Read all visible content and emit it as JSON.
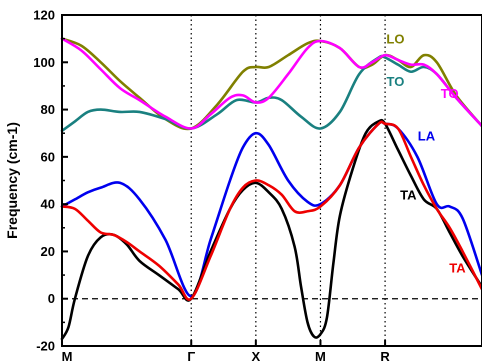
{
  "chart_data": {
    "type": "line",
    "title": "",
    "xlabel": "",
    "ylabel": "Frequency (cm-1)",
    "ylim": [
      -20,
      120
    ],
    "yticks": [
      -20,
      0,
      20,
      40,
      60,
      80,
      100,
      120
    ],
    "high_symmetry_points": [
      {
        "label": "M",
        "x": 0
      },
      {
        "label": "Γ",
        "x": 1
      },
      {
        "label": "X",
        "x": 1.5
      },
      {
        "label": "M",
        "x": 2
      },
      {
        "label": "R",
        "x": 2.5
      }
    ],
    "xlim": [
      0,
      3.25
    ],
    "zero_line": 0,
    "series": [
      {
        "name": "LO",
        "color": "#808000",
        "x": [
          0,
          0.15,
          0.3,
          0.45,
          0.6,
          0.8,
          1.0,
          1.2,
          1.4,
          1.5,
          1.6,
          1.75,
          1.9,
          2.0,
          2.15,
          2.3,
          2.4,
          2.5,
          2.6,
          2.7,
          2.8,
          2.9,
          3.05,
          3.25
        ],
        "y": [
          110,
          107,
          100,
          92,
          85,
          76,
          72,
          82,
          96,
          98,
          98,
          103,
          108,
          109,
          106,
          98,
          99,
          103,
          101,
          98,
          103,
          100,
          86,
          73
        ]
      },
      {
        "name": "TO",
        "color": "#1a8080",
        "x": [
          0,
          0.1,
          0.2,
          0.3,
          0.45,
          0.6,
          0.8,
          1.0,
          1.2,
          1.35,
          1.5,
          1.6,
          1.7,
          1.85,
          2.0,
          2.15,
          2.3,
          2.45,
          2.5,
          2.6,
          2.7,
          2.8,
          2.9,
          3.05,
          3.25
        ],
        "y": [
          71,
          75,
          79,
          80,
          79,
          79,
          76,
          72,
          78,
          84,
          83,
          85,
          84,
          77,
          72,
          79,
          95,
          102,
          102,
          99,
          96,
          98,
          95,
          85,
          73
        ]
      },
      {
        "name": "TO",
        "color": "#ff00ff",
        "x": [
          0,
          0.15,
          0.3,
          0.45,
          0.6,
          0.8,
          1.0,
          1.15,
          1.3,
          1.4,
          1.5,
          1.6,
          1.75,
          1.9,
          2.0,
          2.15,
          2.3,
          2.4,
          2.5,
          2.6,
          2.7,
          2.8,
          2.9,
          3.05,
          3.25
        ],
        "y": [
          110,
          105,
          97,
          89,
          84,
          77,
          72,
          78,
          85,
          86,
          83,
          85,
          95,
          106,
          109,
          106,
          98,
          100,
          103,
          101,
          99,
          99,
          95,
          85,
          73
        ]
      },
      {
        "name": "LA",
        "color": "#0000ee",
        "x": [
          0,
          0.1,
          0.2,
          0.3,
          0.45,
          0.6,
          0.8,
          1.0,
          1.15,
          1.3,
          1.4,
          1.5,
          1.6,
          1.75,
          1.9,
          2.0,
          2.15,
          2.3,
          2.45,
          2.5,
          2.6,
          2.75,
          2.9,
          3.0,
          3.1,
          3.25
        ],
        "y": [
          39,
          42,
          45,
          47,
          49,
          42,
          25,
          1,
          25,
          50,
          64,
          70,
          65,
          50,
          41,
          40,
          48,
          64,
          74,
          74,
          72,
          60,
          40,
          39,
          34,
          10
        ]
      },
      {
        "name": "TA",
        "color": "#000000",
        "x": [
          0,
          0.05,
          0.1,
          0.2,
          0.3,
          0.4,
          0.5,
          0.6,
          0.75,
          0.9,
          1.0,
          1.15,
          1.3,
          1.4,
          1.5,
          1.6,
          1.7,
          1.8,
          1.85,
          1.9,
          1.95,
          2.0,
          2.05,
          2.1,
          2.15,
          2.25,
          2.35,
          2.45,
          2.5,
          2.6,
          2.7,
          2.8,
          2.9,
          3.0,
          3.1,
          3.25
        ],
        "y": [
          -17,
          -12,
          0,
          18,
          26,
          27,
          23,
          16,
          10,
          4,
          0,
          20,
          38,
          46,
          49,
          45,
          38,
          22,
          5,
          -10,
          -16,
          -15,
          -8,
          15,
          35,
          55,
          70,
          75,
          74,
          63,
          52,
          42,
          38,
          28,
          18,
          5
        ]
      },
      {
        "name": "TA",
        "color": "#ee0000",
        "x": [
          0,
          0.1,
          0.2,
          0.3,
          0.4,
          0.5,
          0.6,
          0.75,
          0.9,
          1.0,
          1.15,
          1.3,
          1.4,
          1.5,
          1.6,
          1.7,
          1.8,
          1.9,
          2.0,
          2.15,
          2.3,
          2.45,
          2.5,
          2.6,
          2.7,
          2.8,
          2.9,
          3.0,
          3.1,
          3.25
        ],
        "y": [
          39,
          38,
          33,
          28,
          27,
          24,
          20,
          14,
          6,
          0,
          18,
          38,
          47,
          50,
          48,
          44,
          37,
          37,
          39,
          48,
          64,
          74,
          74,
          72,
          60,
          48,
          38,
          30,
          20,
          4
        ]
      }
    ],
    "annotations": [
      {
        "text": "LO",
        "color": "#808000",
        "x": 2.58,
        "y": 108
      },
      {
        "text": "TO",
        "color": "#1a8080",
        "x": 2.58,
        "y": 90
      },
      {
        "text": "TO",
        "color": "#ff00ff",
        "x": 3.0,
        "y": 85
      },
      {
        "text": "LA",
        "color": "#0000ee",
        "x": 2.82,
        "y": 67
      },
      {
        "text": "TA",
        "color": "#000000",
        "x": 2.68,
        "y": 42
      },
      {
        "text": "TA",
        "color": "#ee0000",
        "x": 3.06,
        "y": 11
      }
    ]
  }
}
